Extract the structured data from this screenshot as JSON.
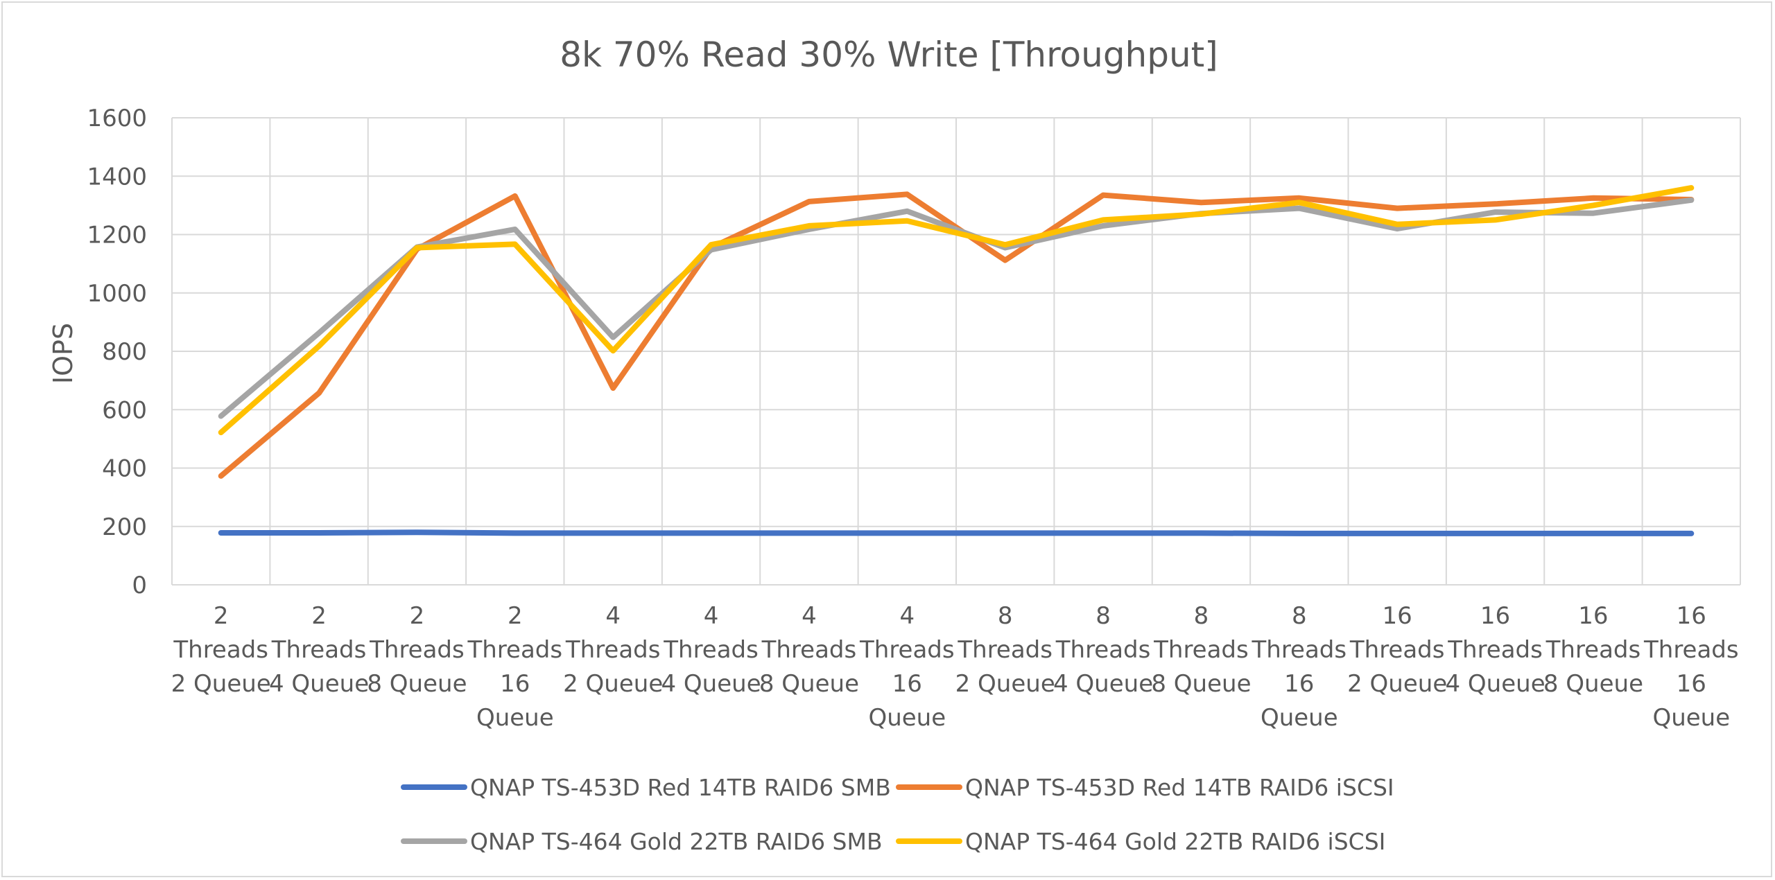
{
  "chart_data": {
    "type": "line",
    "title": "8k 70% Read 30% Write [Throughput]",
    "xlabel": "",
    "ylabel": "IOPS",
    "ylim": [
      0,
      1600
    ],
    "yticks": [
      0,
      200,
      400,
      600,
      800,
      1000,
      1200,
      1400,
      1600
    ],
    "grid": true,
    "legend_position": "bottom",
    "categories": [
      [
        "2",
        "Threads",
        "2 Queue"
      ],
      [
        "2",
        "Threads",
        "4 Queue"
      ],
      [
        "2",
        "Threads",
        "8 Queue"
      ],
      [
        "2",
        "Threads",
        "16",
        "Queue"
      ],
      [
        "4",
        "Threads",
        "2 Queue"
      ],
      [
        "4",
        "Threads",
        "4 Queue"
      ],
      [
        "4",
        "Threads",
        "8 Queue"
      ],
      [
        "4",
        "Threads",
        "16",
        "Queue"
      ],
      [
        "8",
        "Threads",
        "2 Queue"
      ],
      [
        "8",
        "Threads",
        "4 Queue"
      ],
      [
        "8",
        "Threads",
        "8 Queue"
      ],
      [
        "8",
        "Threads",
        "16",
        "Queue"
      ],
      [
        "16",
        "Threads",
        "2 Queue"
      ],
      [
        "16",
        "Threads",
        "4 Queue"
      ],
      [
        "16",
        "Threads",
        "8 Queue"
      ],
      [
        "16",
        "Threads",
        "16",
        "Queue"
      ]
    ],
    "series": [
      {
        "name": "QNAP TS-453D Red 14TB RAID6 SMB",
        "color": "#4472C4",
        "values": [
          178,
          178,
          180,
          177,
          177,
          177,
          177,
          177,
          177,
          177,
          177,
          176,
          176,
          176,
          176,
          176
        ]
      },
      {
        "name": "QNAP TS-453D Red 14TB RAID6 iSCSI",
        "color": "#ED7D31",
        "values": [
          373,
          657,
          1150,
          1332,
          674,
          1155,
          1313,
          1338,
          1112,
          1335,
          1310,
          1325,
          1290,
          1305,
          1325,
          1320
        ]
      },
      {
        "name": "QNAP TS-464 Gold 22TB RAID6 SMB",
        "color": "#A5A5A5",
        "values": [
          578,
          863,
          1157,
          1218,
          848,
          1148,
          1218,
          1280,
          1155,
          1230,
          1272,
          1290,
          1220,
          1277,
          1273,
          1318
        ]
      },
      {
        "name": "QNAP TS-464 Gold 22TB RAID6 iSCSI",
        "color": "#FFC000",
        "values": [
          522,
          818,
          1155,
          1167,
          802,
          1165,
          1230,
          1247,
          1165,
          1250,
          1270,
          1310,
          1235,
          1250,
          1300,
          1360
        ]
      }
    ]
  }
}
